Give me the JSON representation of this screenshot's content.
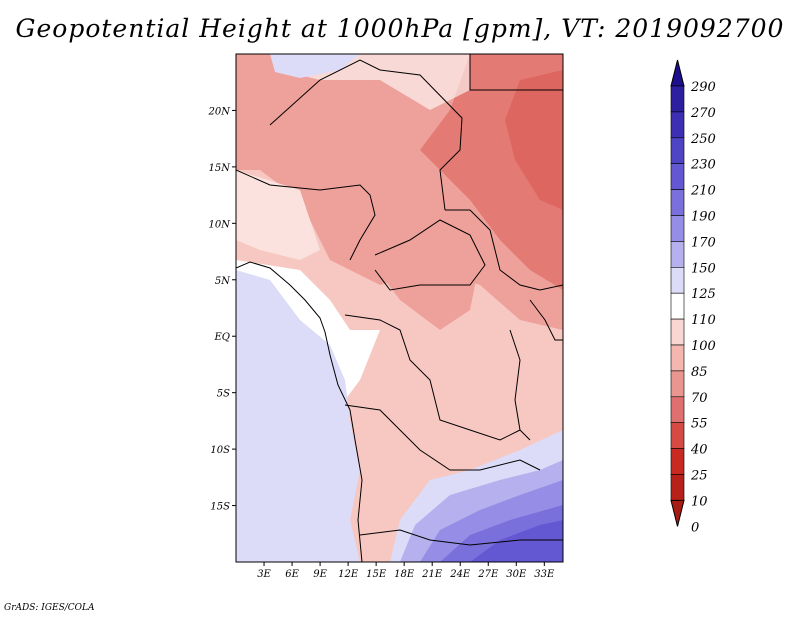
{
  "title": "Geopotential Height at 1000hPa [gpm], VT: 2019092700",
  "credit": "GrADS: IGES/COLA",
  "map": {
    "lon_range": [
      0,
      35
    ],
    "lat_range": [
      -20,
      25
    ],
    "lat_ticks": [
      "20N",
      "15N",
      "10N",
      "5N",
      "EQ",
      "5S",
      "10S",
      "15S"
    ],
    "lon_ticks": [
      "3E",
      "6E",
      "9E",
      "12E",
      "15E",
      "18E",
      "21E",
      "24E",
      "27E",
      "30E",
      "33E"
    ]
  },
  "colorbar": {
    "levels": [
      "290",
      "270",
      "250",
      "230",
      "210",
      "190",
      "170",
      "150",
      "125",
      "110",
      "100",
      "85",
      "70",
      "55",
      "40",
      "25",
      "10",
      "0"
    ],
    "colors": [
      "#1e0f8c",
      "#2d20a0",
      "#3c2fb4",
      "#4f44c4",
      "#6358d2",
      "#7a70dc",
      "#968ee6",
      "#b6b0ee",
      "#dcdcf8",
      "#ffffff",
      "#fad6d2",
      "#f4b6ae",
      "#ea9690",
      "#e07070",
      "#d64a44",
      "#c82a22",
      "#b8201a",
      "#a81a14"
    ]
  }
}
